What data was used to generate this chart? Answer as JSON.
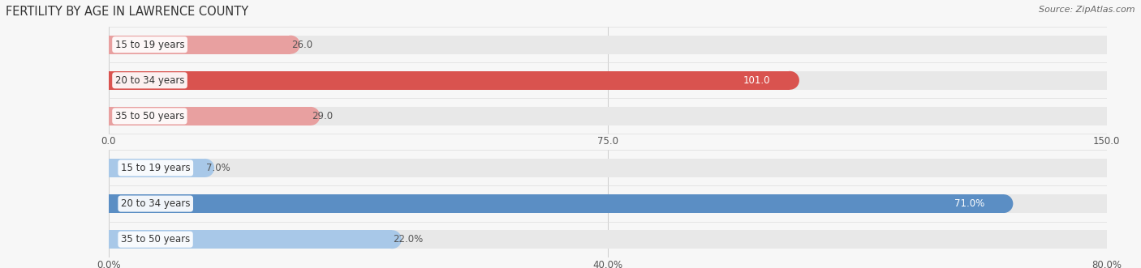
{
  "title": "FERTILITY BY AGE IN LAWRENCE COUNTY",
  "source": "Source: ZipAtlas.com",
  "top_chart": {
    "categories": [
      "15 to 19 years",
      "20 to 34 years",
      "35 to 50 years"
    ],
    "values": [
      26.0,
      101.0,
      29.0
    ],
    "xlim": [
      0,
      150
    ],
    "xticks": [
      0.0,
      75.0,
      150.0
    ],
    "xtick_labels": [
      "0.0",
      "75.0",
      "150.0"
    ],
    "bar_colors": [
      "#e8a0a0",
      "#d9534f",
      "#e8a0a0"
    ],
    "bar_bg_color": "#e8e8e8",
    "label_inside_color": "#ffffff",
    "label_outside_color": "#555555",
    "label_threshold": 95
  },
  "bottom_chart": {
    "categories": [
      "15 to 19 years",
      "20 to 34 years",
      "35 to 50 years"
    ],
    "values": [
      7.0,
      71.0,
      22.0
    ],
    "xlim": [
      0,
      80
    ],
    "xticks": [
      0.0,
      40.0,
      80.0
    ],
    "xtick_labels": [
      "0.0%",
      "40.0%",
      "80.0%"
    ],
    "bar_colors": [
      "#a8c8e8",
      "#5b8ec4",
      "#a8c8e8"
    ],
    "bar_bg_color": "#e8e8e8",
    "label_inside_color": "#ffffff",
    "label_outside_color": "#555555",
    "label_threshold": 65
  },
  "bg_color": "#f7f7f7",
  "bar_height": 0.52,
  "label_fontsize": 8.5,
  "tick_fontsize": 8.5,
  "category_fontsize": 8.5,
  "title_fontsize": 10.5,
  "source_fontsize": 8,
  "cat_label_color": "#333333"
}
